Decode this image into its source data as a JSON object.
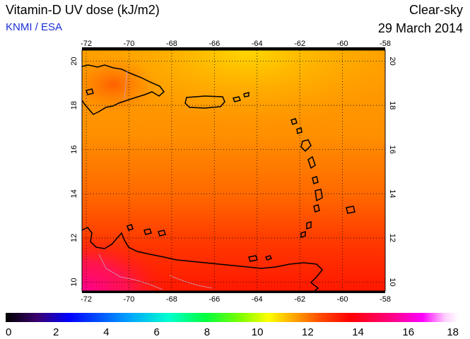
{
  "header": {
    "title": "Vitamin-D UV dose (kJ/m2)",
    "credit": "KNMI / ESA",
    "condition": "Clear-sky",
    "date": "29 March 2014"
  },
  "map": {
    "lon_ticks": [
      "-72",
      "-70",
      "-68",
      "-66",
      "-64",
      "-62",
      "-60",
      "-58"
    ],
    "lat_ticks": [
      "20",
      "18",
      "16",
      "14",
      "12",
      "10"
    ]
  },
  "colorbar": {
    "ticks": [
      "0",
      "2",
      "4",
      "6",
      "8",
      "10",
      "12",
      "14",
      "16",
      "18"
    ],
    "colors": [
      "#000000",
      "#3a0070",
      "#0000ff",
      "#00a0ff",
      "#00ffd0",
      "#00ff40",
      "#80ff00",
      "#ffff00",
      "#ffb000",
      "#ff5000",
      "#ff0000",
      "#ff0080",
      "#ff00ff",
      "#ffd0ff",
      "#ffffff"
    ]
  }
}
